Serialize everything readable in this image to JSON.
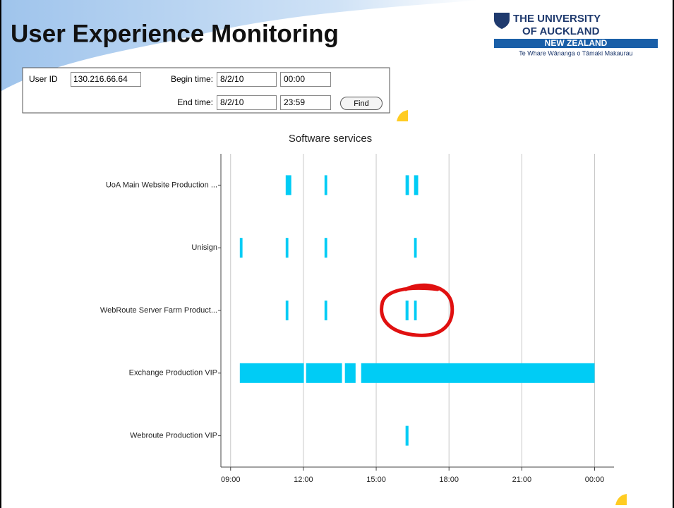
{
  "header": {
    "title": "User Experience Monitoring"
  },
  "logo": {
    "line1": "THE UNIVERSITY",
    "line2": "OF AUCKLAND",
    "band": "NEW ZEALAND",
    "motto": "Te Whare Wānanga o Tāmaki Makaurau"
  },
  "form": {
    "user_id_label": "User ID",
    "user_id": "130.216.66.64",
    "begin_label": "Begin time:",
    "begin_date": "8/2/10",
    "begin_time": "00:00",
    "end_label": "End time:",
    "end_date": "8/2/10",
    "end_time": "23:59",
    "button": "Find"
  },
  "chart_data": {
    "type": "timeline",
    "title": "Software services",
    "color": "#00ccf5",
    "categories": [
      "UoA Main Website Production ...",
      "Unisign",
      "WebRoute Server Farm Product...",
      "Exchange Production VIP",
      "Webroute Production VIP"
    ],
    "series": [
      {
        "name": "UoA Main Website Production ...",
        "values": [
          [
            11.27,
            11.5
          ],
          [
            12.87,
            12.98
          ],
          [
            16.21,
            16.35
          ],
          [
            16.56,
            16.73
          ]
        ]
      },
      {
        "name": "Unisign",
        "values": [
          [
            9.38,
            9.49
          ],
          [
            11.27,
            11.38
          ],
          [
            12.87,
            12.98
          ],
          [
            16.56,
            16.67
          ]
        ]
      },
      {
        "name": "WebRoute Server Farm Product...",
        "values": [
          [
            11.27,
            11.38
          ],
          [
            12.87,
            12.98
          ],
          [
            16.21,
            16.33
          ],
          [
            16.56,
            16.67
          ]
        ]
      },
      {
        "name": "Exchange Production VIP",
        "values": [
          [
            9.38,
            12.02
          ],
          [
            12.11,
            13.59
          ],
          [
            13.71,
            14.15
          ],
          [
            14.38,
            24.0
          ]
        ]
      },
      {
        "name": "Webroute Production VIP",
        "values": [
          [
            16.21,
            16.33
          ]
        ]
      }
    ],
    "xlim": [
      8.6,
      24.8
    ],
    "xticks": [
      {
        "value": 9,
        "label": "09:00"
      },
      {
        "value": 12,
        "label": "12:00"
      },
      {
        "value": 15,
        "label": "15:00"
      },
      {
        "value": 18,
        "label": "18:00"
      },
      {
        "value": 21,
        "label": "21:00"
      },
      {
        "value": 24,
        "label": "00:00"
      }
    ],
    "grid": true
  }
}
